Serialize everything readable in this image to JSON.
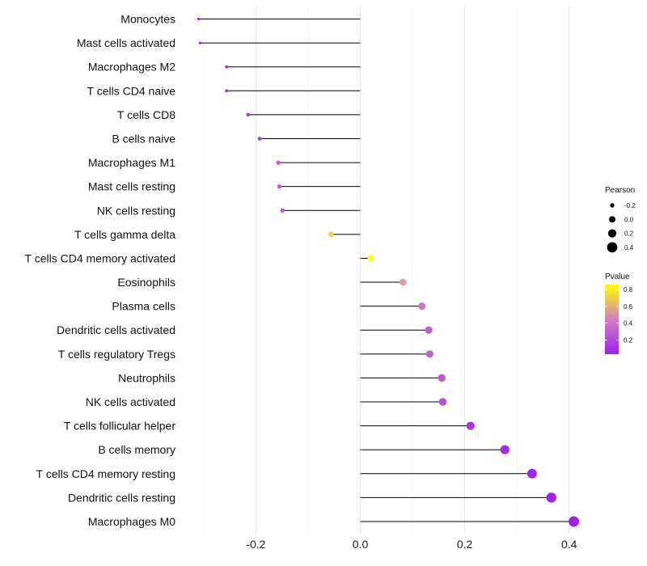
{
  "chart_data": {
    "type": "lollipop",
    "title": "",
    "xlabel": "",
    "ylabel": "",
    "xlim": [
      -0.3,
      0.42
    ],
    "xticks": [
      -0.2,
      0.0,
      0.2,
      0.4
    ],
    "xtick_labels": [
      "-0.2",
      "0.0",
      "0.2",
      "0.4"
    ],
    "baseline": 0.0,
    "categories": [
      "Monocytes",
      "Mast cells activated",
      "Macrophages M2",
      "T cells CD4 naive",
      "T cells CD8",
      "B cells naive",
      "Macrophages M1",
      "Mast cells resting",
      "NK cells resting",
      "T cells gamma delta",
      "T cells CD4 memory activated",
      "Eosinophils",
      "Plasma cells",
      "Dendritic cells activated",
      "T cells regulatory  Tregs ",
      "Neutrophils",
      "NK cells activated",
      "T cells follicular helper",
      "B cells memory",
      "T cells CD4 memory resting",
      "Dendritic cells resting",
      "Macrophages M0"
    ],
    "pearson": [
      -0.31,
      -0.307,
      -0.256,
      -0.256,
      -0.215,
      -0.193,
      -0.157,
      -0.155,
      -0.149,
      -0.056,
      0.02,
      0.082,
      0.118,
      0.131,
      0.133,
      0.156,
      0.158,
      0.211,
      0.277,
      0.329,
      0.366,
      0.409
    ],
    "pvalue": [
      0.02,
      0.03,
      0.1,
      0.1,
      0.13,
      0.16,
      0.28,
      0.29,
      0.28,
      0.72,
      0.85,
      0.55,
      0.4,
      0.3,
      0.32,
      0.28,
      0.25,
      0.12,
      0.08,
      0.05,
      0.04,
      0.02
    ],
    "legend_size": {
      "title": "Pearson",
      "values": [
        -0.2,
        0.0,
        0.2,
        0.4
      ],
      "labels": [
        "-0.2",
        "0.0",
        "0.2",
        "0.4"
      ]
    },
    "legend_color": {
      "title": "Pvalue",
      "range": [
        0.03,
        0.86
      ],
      "ticks": [
        0.8,
        0.6,
        0.4,
        0.2
      ],
      "labels": [
        "0.8",
        "0.6",
        "0.4",
        "0.2"
      ],
      "low_color": "#a020f0",
      "mid_color": "#d17ec0",
      "high_color": "#ffff00"
    },
    "line_color": "#000000",
    "legend_position": "right"
  }
}
